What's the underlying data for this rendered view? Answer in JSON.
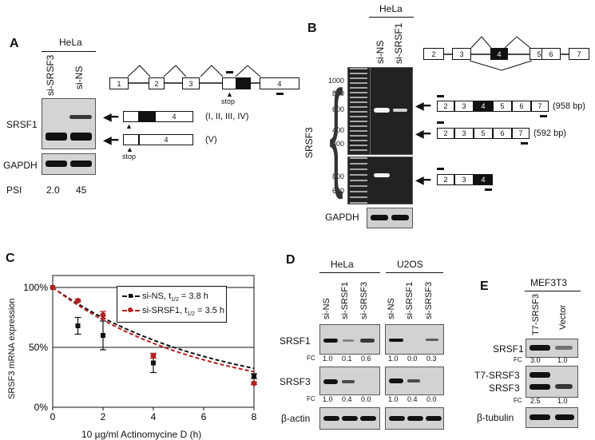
{
  "panelA": {
    "letter": "A",
    "cell_line": "HeLa",
    "lanes": [
      "si-SRSF3",
      "si-NS"
    ],
    "rows": [
      "SRSF1",
      "GAPDH"
    ],
    "psi_label": "PSI",
    "psi_values": [
      "2.0",
      "45"
    ],
    "exons": [
      "1",
      "2",
      "3",
      "4"
    ],
    "stop_label": "stop",
    "iso1_exon": "4",
    "iso1_label": "(I, II, III, IV)",
    "iso2_exon": "4",
    "iso2_label": "(V)",
    "stop_label2": "stop"
  },
  "panelB": {
    "letter": "B",
    "cell_line": "HeLa",
    "lanes": [
      "si-NS",
      "si-SRSF1"
    ],
    "ladder": [
      "1000",
      "800",
      "600",
      "400",
      "300",
      "800",
      "600"
    ],
    "row_label": "SRSF3",
    "gapdh": "GAPDH",
    "top_exons": [
      "2",
      "3",
      "4",
      "5",
      "6",
      "7"
    ],
    "iso1_exons": [
      "2",
      "3",
      "4",
      "5",
      "6",
      "7"
    ],
    "iso1_size": "(958 bp)",
    "iso2_exons": [
      "2",
      "3",
      "5",
      "6",
      "7"
    ],
    "iso2_size": "(592 bp)",
    "iso3_exons": [
      "2",
      "3",
      "4"
    ]
  },
  "panelC": {
    "letter": "C",
    "ylabel": "SRSF3 mRNA expression",
    "xlabel": "10 µg/ml Actinomycine D (h)",
    "legend": [
      {
        "name": "si-NS, t",
        "sub": "1/2",
        "rest": " = 3.8 h"
      },
      {
        "name": "si-SRSF1, t",
        "sub": "1/2",
        "rest": " = 3.5 h"
      }
    ]
  },
  "chart_data": {
    "type": "scatter",
    "xlabel": "10 µg/ml Actinomycine D (h)",
    "ylabel": "SRSF3 mRNA expression",
    "xlim": [
      0,
      8
    ],
    "ylim": [
      0,
      1.1
    ],
    "xticks": [
      "0",
      "2",
      "4",
      "6",
      "8"
    ],
    "yticks": [
      "0%",
      "50%",
      "100%"
    ],
    "ytick_values": [
      0,
      0.5,
      1.0
    ],
    "grid_lines_y": [
      0.5,
      1.0
    ],
    "series": [
      {
        "name": "si-NS, t1/2 = 3.8 h",
        "color": "#111111",
        "x": [
          0,
          1,
          2,
          4,
          8
        ],
        "y": [
          1.0,
          0.68,
          0.6,
          0.37,
          0.26
        ],
        "err": [
          0,
          0.07,
          0.12,
          0.08,
          0.02
        ],
        "halflife": 3.8
      },
      {
        "name": "si-SRSF1, t1/2 = 3.5 h",
        "color": "#b22222",
        "x": [
          0,
          1,
          2,
          4,
          8
        ],
        "y": [
          1.0,
          0.89,
          0.77,
          0.43,
          0.2
        ],
        "err": [
          0,
          0.01,
          0.03,
          0.02,
          0.01
        ],
        "halflife": 3.5
      }
    ]
  },
  "panelD": {
    "letter": "D",
    "cells": [
      "HeLa",
      "U2OS"
    ],
    "lanes": [
      "si-NS",
      "si-SRSF1",
      "si-SRSF3"
    ],
    "rows": [
      "SRSF1",
      "SRSF3",
      "β-actin"
    ],
    "fc_label": "FC",
    "fc_srsf1_hela": [
      "1.0",
      "0.1",
      "0.6"
    ],
    "fc_srsf1_u2os": [
      "1.0",
      "0.0",
      "0.3"
    ],
    "fc_srsf3_hela": [
      "1.0",
      "0.4",
      "0.0"
    ],
    "fc_srsf3_u2os": [
      "1.0",
      "0.4",
      "0.0"
    ]
  },
  "panelE": {
    "letter": "E",
    "cell_line": "MEF3T3",
    "lanes": [
      "T7-SRSF3",
      "Vector"
    ],
    "rows": [
      "SRSF1",
      "T7-SRSF3",
      "SRSF3",
      "β-tubulin"
    ],
    "fc_label": "FC",
    "fc_srsf1": [
      "3.0",
      "1.0"
    ],
    "fc_srsf3": [
      "2.5",
      "1.0"
    ]
  }
}
